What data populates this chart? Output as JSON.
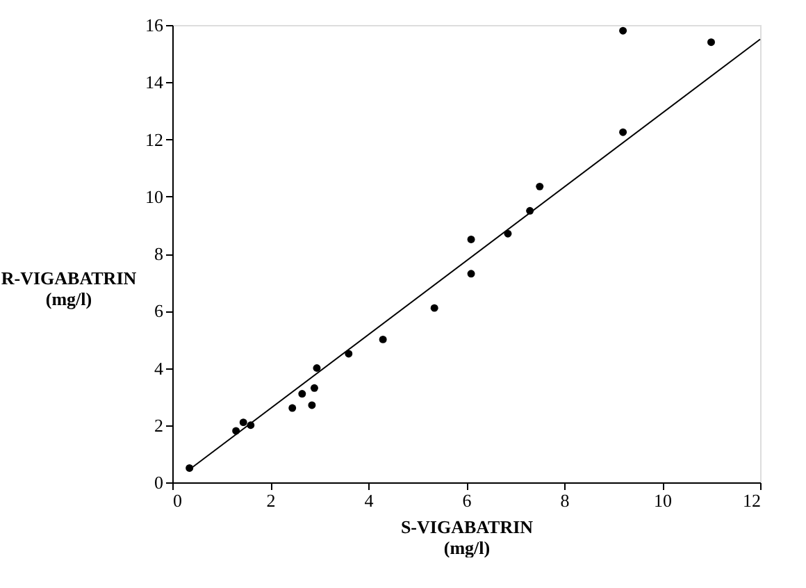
{
  "chart_data": {
    "type": "scatter",
    "xlabel": "S-VIGABATRIN\n(mg/l)",
    "ylabel": "R-VIGABATRIN\n(mg/l)",
    "xlim": [
      0,
      12
    ],
    "ylim": [
      0,
      16
    ],
    "xticks": [
      0,
      2,
      4,
      6,
      8,
      10,
      12
    ],
    "yticks": [
      0,
      2,
      4,
      6,
      8,
      10,
      12,
      14,
      16
    ],
    "grid": false,
    "series": [
      {
        "color": "#000000",
        "marker": "circle",
        "x": [
          0.35,
          1.3,
          1.45,
          1.6,
          2.45,
          2.65,
          2.85,
          2.9,
          2.95,
          3.6,
          4.3,
          5.35,
          6.1,
          6.1,
          6.85,
          7.3,
          7.5,
          9.2,
          9.2,
          11.0
        ],
        "values": [
          0.5,
          1.8,
          2.1,
          2.0,
          2.6,
          3.1,
          2.7,
          3.3,
          4.0,
          4.5,
          5.0,
          6.1,
          7.3,
          8.5,
          8.7,
          9.5,
          10.35,
          12.25,
          15.8,
          15.4
        ]
      },
      {
        "type": "line",
        "color": "#000000",
        "line_style": "solid",
        "marker": "none",
        "x": [
          0.35,
          12.0
        ],
        "values": [
          0.45,
          15.5
        ]
      }
    ]
  }
}
